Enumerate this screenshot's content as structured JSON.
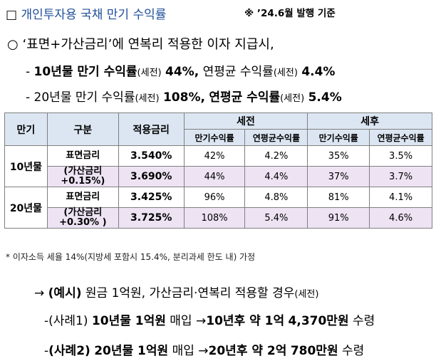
{
  "title": {
    "box": "□",
    "text": "개인투자용 국채 만기 수익률",
    "note": "※ ’24.6월 발행 기준"
  },
  "summary": {
    "bullet": "○",
    "line1": "‘표면+가산금리’에 연복리 적용한 이자 지급시,",
    "line2": {
      "dash": "-",
      "a": "10년물 만기 수익률",
      "b": "(세전)",
      "c": "44%,",
      "d": "연평균 수익률",
      "e": "(세전)",
      "f": "4.4%"
    },
    "line3": {
      "dash": "-",
      "a": "20년물 만기 수익률",
      "b": "(세전)",
      "c": "108%,",
      "d": "연평균 수익률",
      "e": "(세전)",
      "f": "5.4%"
    }
  },
  "table": {
    "headers": {
      "maturity": "만기",
      "category": "구분",
      "rate": "적용금리",
      "pretax": "세전",
      "aftertax": "세후",
      "sub": [
        "만기수익률",
        "연평균수익률",
        "만기수익률",
        "연평균수익률"
      ]
    },
    "groups": [
      {
        "maturity": "10년물",
        "rows": [
          {
            "label1": "표면금리",
            "label2": "",
            "rate": "3.540%",
            "values": [
              "42%",
              "4.2%",
              "35%",
              "3.5%"
            ]
          },
          {
            "label1": "(가산금리",
            "label2": "+0.15%)",
            "rate": "3.690%",
            "values": [
              "44%",
              "4.4%",
              "37%",
              "3.7%"
            ]
          }
        ]
      },
      {
        "maturity": "20년물",
        "rows": [
          {
            "label1": "표면금리",
            "label2": "",
            "rate": "3.425%",
            "values": [
              "96%",
              "4.8%",
              "81%",
              "4.1%"
            ]
          },
          {
            "label1": "(가산금리",
            "label2": "+0.30% )",
            "rate": "3.725%",
            "values": [
              "108%",
              "5.4%",
              "91%",
              "4.6%"
            ]
          }
        ]
      }
    ]
  },
  "footnote": "* 이자소득 세율 14%(지방세 포함시 15.4%, 분리과세 한도 내) 가정",
  "example": {
    "arrow": "→",
    "label": "(예시)",
    "text": "원금 1억원, 가산금리·연복리 적용할 경우",
    "suffix": "(세전)"
  },
  "cases": [
    {
      "dash": "-",
      "label": "(사례1)",
      "a": "10년물 1억원",
      "b": "매입",
      "arrow": "→",
      "c": "10년후 약 1억",
      "d": "4,370만원",
      "e": "수령"
    },
    {
      "dash": "-",
      "label": "(사례2)",
      "a": "20년물 1억원",
      "b": "매입",
      "arrow": "→",
      "c": "20년후 약 2억",
      "d": "780만원",
      "e": "수령"
    }
  ]
}
